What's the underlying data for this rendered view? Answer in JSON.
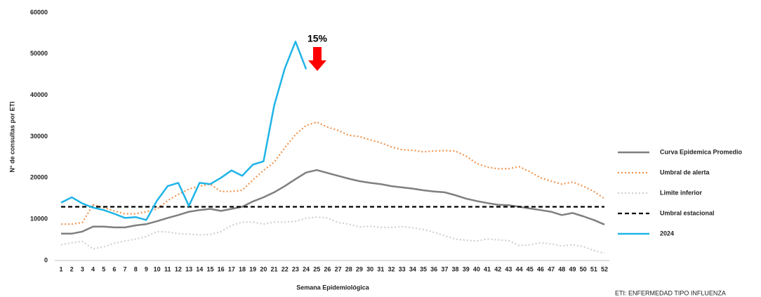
{
  "chart_data": {
    "type": "line",
    "x_label": "Semana Epidemiológica",
    "y_label": "N° de consultas por ETI",
    "annotation": "15%",
    "footnote": "ETI: ENFERMEDAD TIPO INFLUENZA",
    "categories": [
      "1",
      "2",
      "3",
      "4",
      "5",
      "6",
      "7",
      "8",
      "9",
      "10",
      "11",
      "12",
      "13",
      "14",
      "15",
      "16",
      "17",
      "18",
      "19",
      "20",
      "21",
      "22",
      "23",
      "24",
      "25",
      "26",
      "27",
      "28",
      "29",
      "30",
      "31",
      "32",
      "33",
      "34",
      "35",
      "36",
      "37",
      "38",
      "39",
      "40",
      "41",
      "42",
      "43",
      "44",
      "45",
      "46",
      "47",
      "48",
      "49",
      "50",
      "51",
      "52"
    ],
    "ylim": [
      0,
      60000
    ],
    "yticks": [
      0,
      10000,
      20000,
      30000,
      40000,
      50000,
      60000
    ],
    "legend": "right",
    "series": [
      {
        "name": "Curva Epidemica Promedio",
        "color": "#7f7f7f",
        "style": "solid",
        "values": [
          6500,
          6500,
          7000,
          8200,
          8200,
          8000,
          8000,
          8500,
          8800,
          9500,
          10300,
          11000,
          11800,
          12200,
          12500,
          12000,
          12500,
          13000,
          14300,
          15300,
          16500,
          18000,
          19700,
          21300,
          21900,
          21200,
          20500,
          19800,
          19200,
          18800,
          18500,
          18000,
          17700,
          17400,
          17000,
          16700,
          16500,
          15800,
          15000,
          14400,
          13900,
          13500,
          13400,
          13000,
          12600,
          12200,
          11800,
          11000,
          11500,
          10700,
          9800,
          8700
        ]
      },
      {
        "name": "Umbral de alerta",
        "color": "#f0934e",
        "style": "dotted",
        "values": [
          8800,
          8800,
          9200,
          13500,
          12800,
          12000,
          11300,
          11300,
          11800,
          12500,
          14500,
          16000,
          17300,
          18000,
          18500,
          16700,
          16700,
          17000,
          19500,
          21800,
          23800,
          27300,
          30500,
          32700,
          33500,
          32300,
          31500,
          30300,
          30000,
          29200,
          28500,
          27500,
          26800,
          26700,
          26300,
          26500,
          26600,
          26500,
          25300,
          23500,
          22600,
          22200,
          22200,
          22700,
          21500,
          20000,
          19200,
          18500,
          19000,
          18000,
          16700,
          15000
        ]
      },
      {
        "name": "Limite inferior",
        "color": "#d0d0d0",
        "style": "dotted",
        "values": [
          3800,
          4300,
          4600,
          2800,
          3300,
          4200,
          4700,
          5200,
          5800,
          7000,
          6900,
          6500,
          6400,
          6200,
          6300,
          7000,
          8500,
          9300,
          9300,
          8800,
          9300,
          9300,
          9500,
          10200,
          10500,
          10300,
          9200,
          8800,
          8100,
          8300,
          8000,
          8000,
          8200,
          7900,
          7500,
          6800,
          6000,
          5200,
          4900,
          4700,
          5200,
          5000,
          4800,
          3600,
          3800,
          4300,
          4000,
          3500,
          3800,
          3400,
          2400,
          1800
        ]
      },
      {
        "name": "Umbral estacional",
        "color": "#000000",
        "style": "dashed",
        "values": [
          13000,
          13000,
          13000,
          13000,
          13000,
          13000,
          13000,
          13000,
          13000,
          13000,
          13000,
          13000,
          13000,
          13000,
          13000,
          13000,
          13000,
          13000,
          13000,
          13000,
          13000,
          13000,
          13000,
          13000,
          13000,
          13000,
          13000,
          13000,
          13000,
          13000,
          13000,
          13000,
          13000,
          13000,
          13000,
          13000,
          13000,
          13000,
          13000,
          13000,
          13000,
          13000,
          13000,
          13000,
          13000,
          13000,
          13000,
          13000,
          13000,
          13000,
          13000,
          13000
        ]
      },
      {
        "name": "2024",
        "color": "#1fb4e8",
        "style": "solid",
        "values": [
          14000,
          15300,
          13800,
          12800,
          12200,
          11300,
          10300,
          10500,
          9800,
          14500,
          18000,
          18800,
          13200,
          18800,
          18500,
          20000,
          21800,
          20500,
          23200,
          24000,
          37500,
          46500,
          53000,
          46300,
          null,
          null,
          null,
          null,
          null,
          null,
          null,
          null,
          null,
          null,
          null,
          null,
          null,
          null,
          null,
          null,
          null,
          null,
          null,
          null,
          null,
          null,
          null,
          null,
          null,
          null,
          null,
          null
        ]
      }
    ]
  }
}
